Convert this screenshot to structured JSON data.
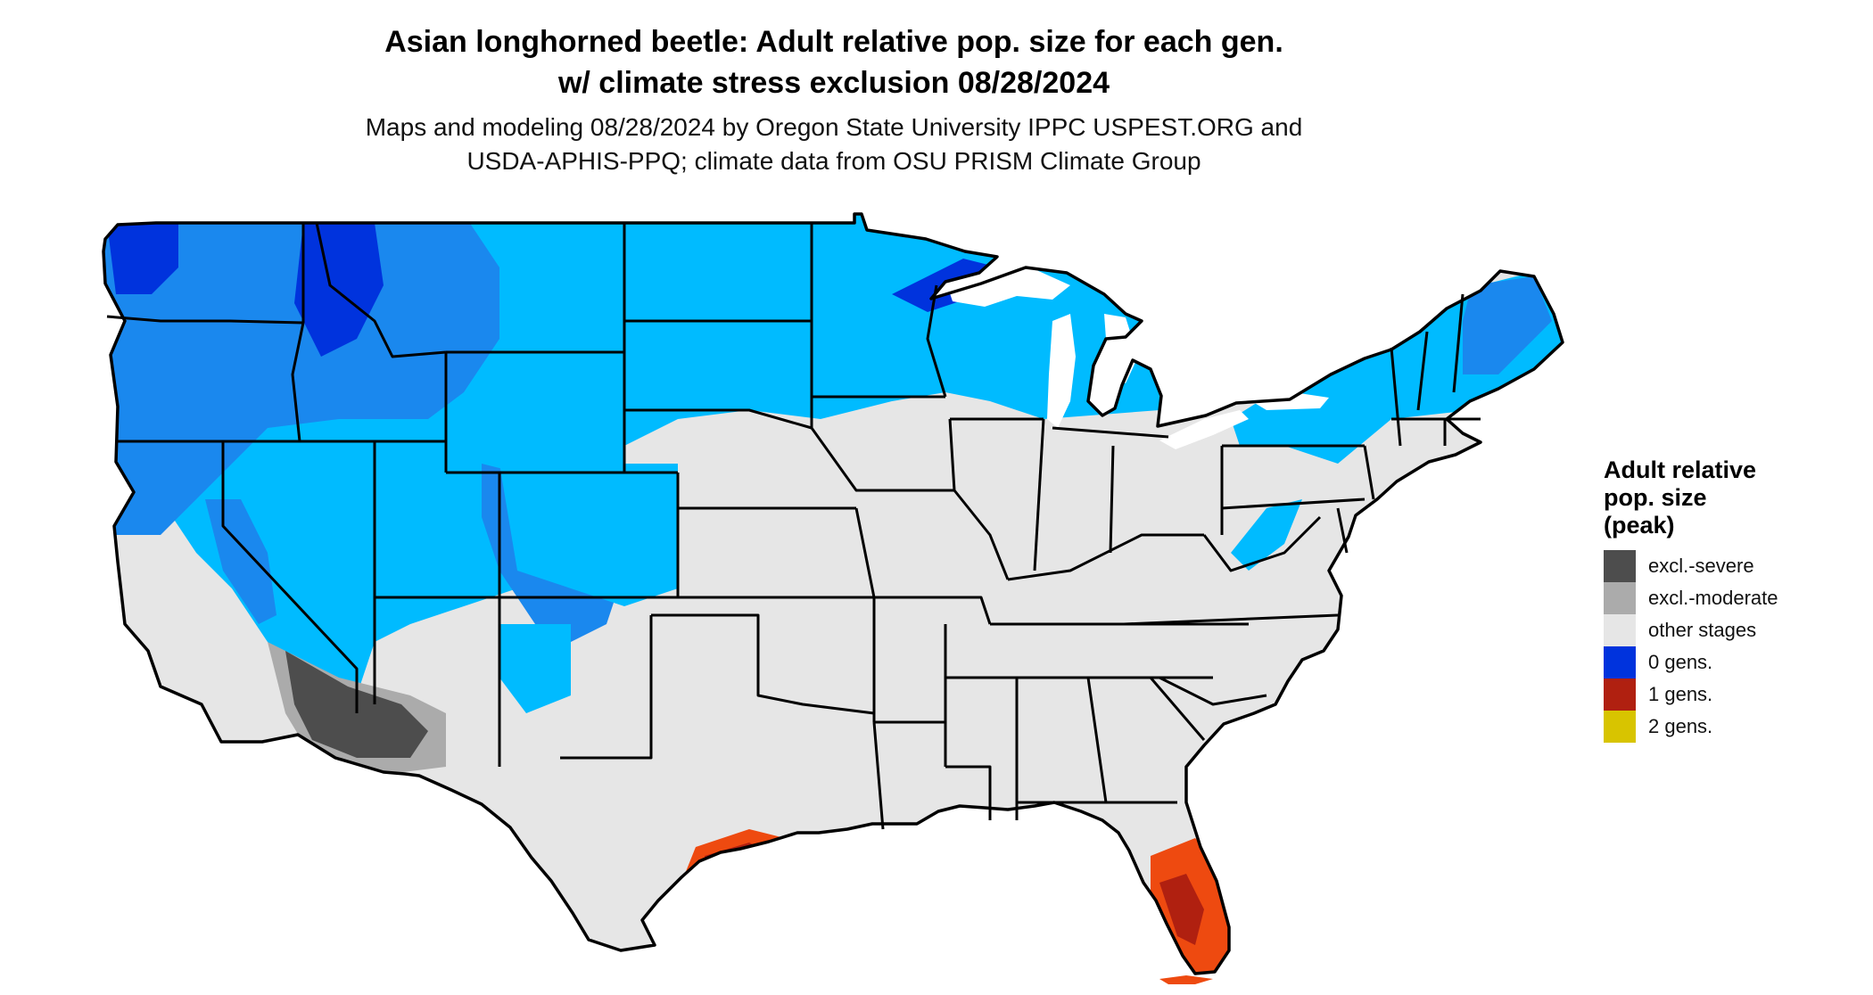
{
  "title_line1": "Asian longhorned beetle: Adult relative pop. size for each gen.",
  "title_line2": "w/ climate stress exclusion 08/28/2024",
  "subtitle_line1": "Maps and modeling 08/28/2024 by Oregon State University IPPC USPEST.ORG and",
  "subtitle_line2": "USDA-APHIS-PPQ; climate data from OSU PRISM Climate Group",
  "legend": {
    "title_line1": "Adult relative",
    "title_line2": "pop. size",
    "title_line3": "(peak)",
    "items": [
      {
        "label": "excl.-severe",
        "color": "#4d4d4d"
      },
      {
        "label": "excl.-moderate",
        "color": "#ababab"
      },
      {
        "label": "other stages",
        "color": "#e6e6e6"
      },
      {
        "label": "0 gens.",
        "color": "#0033dd"
      },
      {
        "label": "1 gens.",
        "color": "#b02010"
      },
      {
        "label": "2 gens.",
        "color": "#d8c400"
      }
    ]
  },
  "map_colors": {
    "other": "#e6e6e6",
    "light_blue": "#00bbff",
    "mid_blue": "#1a88ee",
    "dark_blue": "#0033dd",
    "excl_severe": "#4d4d4d",
    "excl_moderate": "#ababab",
    "red_orange": "#ee4a10",
    "dark_red": "#b02010",
    "border": "#000000"
  }
}
